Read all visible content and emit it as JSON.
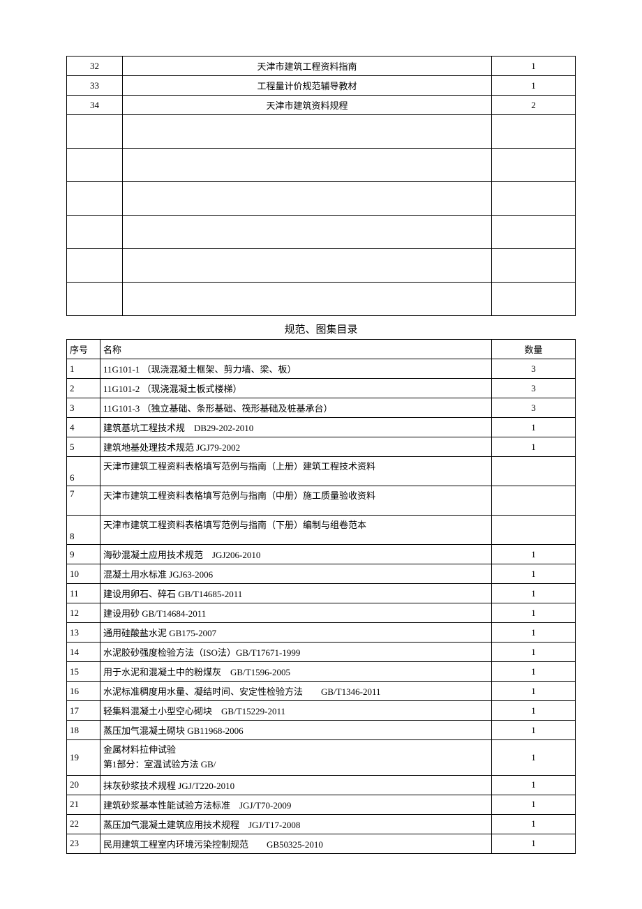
{
  "table1": {
    "columns": {
      "num_width": 80,
      "qty_width": 120
    },
    "rows": [
      {
        "num": "32",
        "name": "天津市建筑工程资料指南",
        "qty": "1"
      },
      {
        "num": "33",
        "name": "工程量计价规范辅导教材",
        "qty": "1"
      },
      {
        "num": "34",
        "name": "天津市建筑资料规程",
        "qty": "2"
      }
    ],
    "empty_row_count": 6
  },
  "section_title": "规范、图集目录",
  "table2": {
    "headers": {
      "num": "序号",
      "name": "名称",
      "qty": "数量"
    },
    "rows": [
      {
        "num": "1",
        "name": "11G101-1 （现浇混凝土框架、剪力墙、梁、板）",
        "qty": "3"
      },
      {
        "num": "2",
        "name": "11G101-2 （现浇混凝土板式楼梯）",
        "qty": "3"
      },
      {
        "num": "3",
        "name": "11G101-3 （独立基础、条形基础、筏形基础及桩基承台）",
        "qty": "3"
      },
      {
        "num": "4",
        "name": "建筑基坑工程技术规　DB29-202-2010",
        "qty": "1"
      },
      {
        "num": "5",
        "name": "建筑地基处理技术规范 JGJ79-2002",
        "qty": "1"
      },
      {
        "num": "6",
        "name": "天津市建筑工程资料表格填写范例与指南（上册）建筑工程技术资料",
        "qty": "",
        "tall": true
      },
      {
        "num": "7",
        "name": "天津市建筑工程资料表格填写范例与指南（中册）施工质量验收资料",
        "qty": "",
        "tall_top": true
      },
      {
        "num": "8",
        "name": "天津市建筑工程资料表格填写范例与指南（下册）编制与组卷范本",
        "qty": "",
        "tall": true
      },
      {
        "num": "9",
        "name": "海砂混凝土应用技术规范　JGJ206-2010",
        "qty": "1"
      },
      {
        "num": "10",
        "name": "混凝土用水标准 JGJ63-2006",
        "qty": "1"
      },
      {
        "num": "11",
        "name": "建设用卵石、碎石 GB/T14685-2011",
        "qty": "1"
      },
      {
        "num": "12",
        "name": "建设用砂 GB/T14684-2011",
        "qty": "1"
      },
      {
        "num": "13",
        "name": "通用硅酸盐水泥 GB175-2007",
        "qty": "1"
      },
      {
        "num": "14",
        "name": "水泥胶砂强度检验方法（ISO法）GB/T17671-1999",
        "qty": "1"
      },
      {
        "num": "15",
        "name": "用于水泥和混凝土中的粉煤灰　GB/T1596-2005",
        "qty": "1"
      },
      {
        "num": "16",
        "name": "水泥标准稠度用水量、凝结时间、安定性检验方法　　GB/T1346-2011",
        "qty": "1"
      },
      {
        "num": "17",
        "name": "轻集料混凝土小型空心砌块　GB/T15229-2011",
        "qty": "1"
      },
      {
        "num": "18",
        "name": "蒸压加气混凝土砌块 GB11968-2006",
        "qty": "1"
      },
      {
        "num": "19",
        "name": "金属材料拉伸试验\n第1部分：室温试验方法 GB/",
        "qty": "1",
        "multi": true
      },
      {
        "num": "20",
        "name": "抹灰砂浆技术规程 JGJ/T220-2010",
        "qty": "1"
      },
      {
        "num": "21",
        "name": "建筑砂浆基本性能试验方法标准　JGJ/T70-2009",
        "qty": "1"
      },
      {
        "num": "22",
        "name": "蒸压加气混凝土建筑应用技术规程　JGJ/T17-2008",
        "qty": "1"
      },
      {
        "num": "23",
        "name": "民用建筑工程室内环境污染控制规范　　GB50325-2010",
        "qty": "1"
      }
    ]
  },
  "colors": {
    "border": "#000000",
    "text": "#000000",
    "background": "#ffffff"
  }
}
